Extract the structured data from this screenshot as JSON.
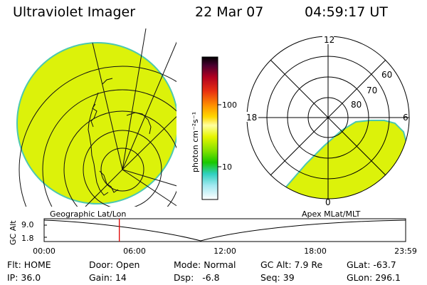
{
  "header": {
    "instrument": "Ultraviolet Imager",
    "date": "22 Mar 07",
    "time": "04:59:17 UT"
  },
  "colorbar": {
    "unit_label": "photon cm⁻²s⁻¹",
    "ticks": [
      "100",
      "10"
    ]
  },
  "polar_plot": {
    "mlt_labels": {
      "top": "12",
      "left": "18",
      "right": "6",
      "bottom": "0"
    },
    "lat_labels": [
      "60",
      "70",
      "80"
    ]
  },
  "timeline": {
    "y_axis_label": "GC Alt",
    "y_ticks": [
      "9.0",
      "1.8"
    ],
    "left_caption": "Geographic Lat/Lon",
    "right_caption": "Apex MLat/MLT",
    "x_ticks": [
      "00:00",
      "06:00",
      "12:00",
      "18:00",
      "23:59"
    ],
    "current_time_fraction": 0.208
  },
  "status": {
    "flt_label": "Flt:",
    "flt_value": "HOME",
    "ip_label": "IP:",
    "ip_value": "36.0",
    "door_label": "Door:",
    "door_value": "Open",
    "gain_label": "Gain:",
    "gain_value": "14",
    "mode_label": "Mode:",
    "mode_value": "Normal",
    "dsp_label": "Dsp:",
    "dsp_value": "-6.8",
    "gcalt_label": "GC Alt:",
    "gcalt_value": "7.9 Re",
    "seq_label": "Seq:",
    "seq_value": "39",
    "glat_label": "GLat:",
    "glat_value": "-63.7",
    "glon_label": "GLon:",
    "glon_value": "296.1"
  },
  "colors": {
    "emission_fill": "#dcf20a",
    "edge_color": "#4cc8b0",
    "time_marker": "#e00000"
  }
}
